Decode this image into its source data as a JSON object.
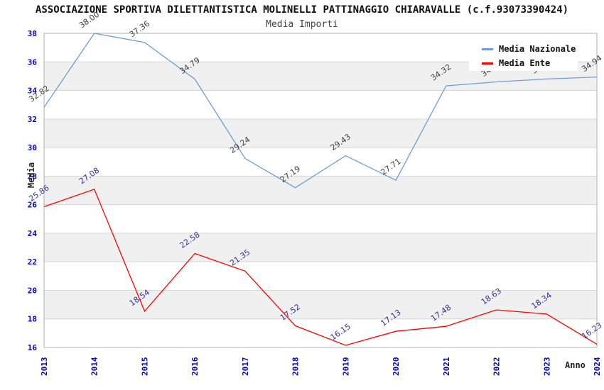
{
  "title": "ASSOCIAZIONE SPORTIVA DILETTANTISTICA MOLINELLI PATTINAGGIO CHIARAVALLE (c.f.93073390424)",
  "subtitle": "Media Importi",
  "legend": {
    "items": [
      {
        "label": "Media Nazionale",
        "color": "#6D9ED6"
      },
      {
        "label": "Media Ente",
        "color": "#FF0000"
      }
    ]
  },
  "axes": {
    "ylabel": "Media",
    "xlabel": "Anno",
    "ylim": [
      16,
      38
    ],
    "ytick_step": 2,
    "tick_color": "#0000CC",
    "band_color": "#F0F0F0",
    "grid_color": "#D6D6D6",
    "border_color": "#B0B0B0"
  },
  "chart_data": {
    "type": "line",
    "title": "Media Importi",
    "categories": [
      "2013",
      "2014",
      "2015",
      "2016",
      "2017",
      "2018",
      "2019",
      "2020",
      "2021",
      "2022",
      "2023",
      "2024"
    ],
    "series": [
      {
        "name": "Media Nazionale",
        "color": "#6D9ED6",
        "label_color": "#3F3F3F",
        "values": [
          32.82,
          38.0,
          37.36,
          34.79,
          29.24,
          27.19,
          29.43,
          27.71,
          34.32,
          34.6,
          34.8,
          34.94
        ]
      },
      {
        "name": "Media Ente",
        "color": "#FF0000",
        "label_color": "#333399",
        "values": [
          25.86,
          27.08,
          18.54,
          22.58,
          21.35,
          17.52,
          16.15,
          17.13,
          17.48,
          18.63,
          18.34,
          16.23
        ]
      }
    ],
    "xlabel": "Anno",
    "ylabel": "Media",
    "ylim": [
      16,
      38
    ],
    "grid": true,
    "legend_position": "top-right",
    "labels_hidden_by_legend": [
      "2022",
      "2023"
    ]
  }
}
